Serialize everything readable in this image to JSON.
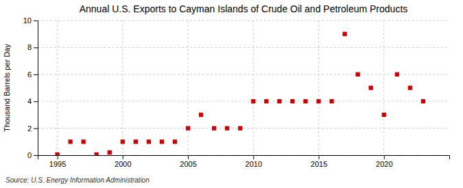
{
  "chart_data": {
    "type": "scatter",
    "title": "Annual U.S. Exports to Cayman Islands of Crude Oil and Petroleum Products",
    "y_label": "Thousand Barrels per Day",
    "annotations": [
      "Source: U.S. Energy Information Administration"
    ],
    "x": [
      1995,
      1996,
      1997,
      1998,
      1999,
      2000,
      2001,
      2002,
      2003,
      2004,
      2005,
      2006,
      2007,
      2008,
      2009,
      2010,
      2011,
      2012,
      2013,
      2014,
      2015,
      2016,
      2017,
      2018,
      2019,
      2020,
      2021,
      2022,
      2023
    ],
    "values": [
      0.05,
      1,
      1,
      0.05,
      0.2,
      1,
      1,
      1,
      1,
      1,
      2,
      3,
      2,
      2,
      2,
      4,
      4,
      4,
      4,
      4,
      4,
      4,
      9,
      6,
      5,
      3,
      6,
      5,
      4
    ],
    "color": "#cc0000",
    "marker": "square",
    "xlim": [
      1993.5,
      2025
    ],
    "xticks": [
      1995,
      2000,
      2005,
      2010,
      2015,
      2020
    ],
    "ylim": [
      0,
      10
    ],
    "yticks": [
      0,
      2,
      4,
      6,
      8,
      10
    ],
    "grid": true
  }
}
